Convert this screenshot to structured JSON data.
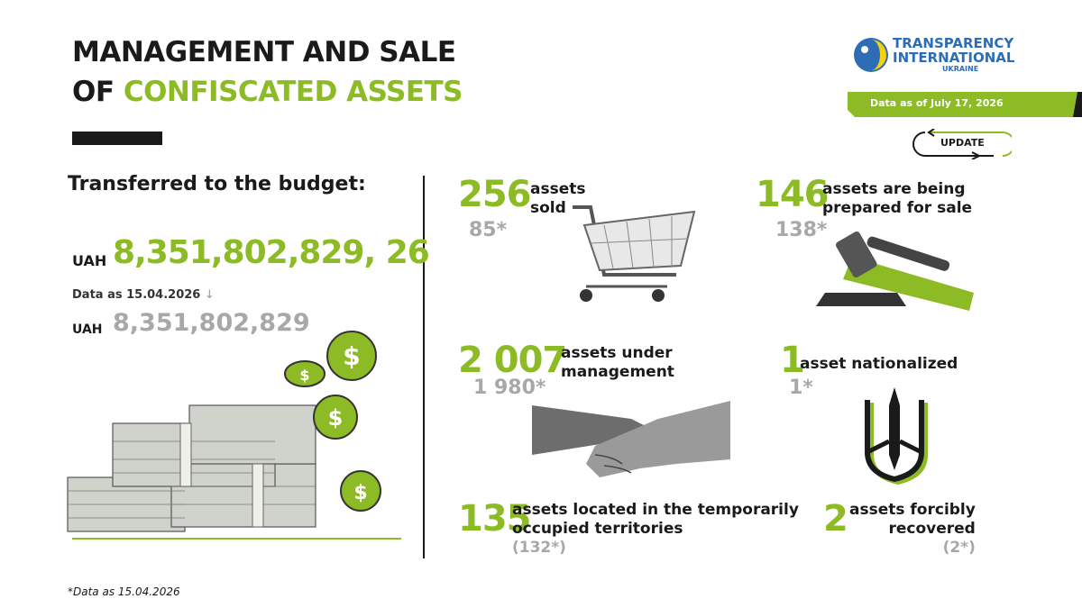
{
  "header": {
    "title_line1": "MANAGEMENT AND SALE",
    "title_line2_prefix": "OF",
    "title_line2_highlight": "CONFISCATED ASSETS"
  },
  "logo": {
    "line1": "TRANSPARENCY",
    "line2": "INTERNATIONAL",
    "line3": "UKRAINE"
  },
  "date_badge": "Data as of July 17, 2026",
  "update_button": "UPDATE",
  "budget": {
    "heading": "Transferred to the budget:",
    "currency": "UAH",
    "amount": "8,351,802,829, 26",
    "previous_note": "Data as 15.04.2026",
    "previous_currency": "UAH",
    "previous_amount": "8,351,802,829"
  },
  "stats": [
    {
      "value": "256",
      "label": [
        "assets",
        "sold"
      ],
      "previous": "85*"
    },
    {
      "value": "146",
      "label": [
        "assets are being",
        "prepared for sale"
      ],
      "previous": "138*"
    },
    {
      "value": "2 007",
      "label": [
        "assets under",
        "management"
      ],
      "previous": "1 980*"
    },
    {
      "value": "1",
      "label": [
        "asset nationalized"
      ],
      "previous": "1*"
    },
    {
      "value": "135",
      "label": [
        "assets located in the temporarily",
        "occupied territories"
      ],
      "previous": "(132*)"
    },
    {
      "value": "2",
      "label": [
        "assets forcibly",
        "recovered"
      ],
      "previous": "(2*)"
    }
  ],
  "footnote": "*Data as 15.04.2026"
}
